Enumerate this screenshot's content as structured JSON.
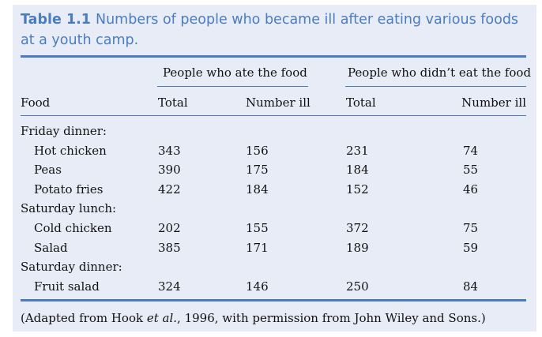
{
  "table": {
    "number": "Table 1.1",
    "title": "Numbers of people who became ill after eating various foods at a youth camp.",
    "group_headers": [
      "People who ate the food",
      "People who didn’t eat the food"
    ],
    "columns": [
      "Food",
      "Total",
      "Number ill",
      "Total",
      "Number ill"
    ],
    "rows": [
      {
        "type": "section",
        "label": "Friday dinner:"
      },
      {
        "type": "item",
        "label": "Hot chicken",
        "values": [
          "343",
          "156",
          "231",
          "74"
        ]
      },
      {
        "type": "item",
        "label": "Peas",
        "values": [
          "390",
          "175",
          "184",
          "55"
        ]
      },
      {
        "type": "item",
        "label": "Potato fries",
        "values": [
          "422",
          "184",
          "152",
          "46"
        ]
      },
      {
        "type": "section",
        "label": "Saturday lunch:"
      },
      {
        "type": "item",
        "label": "Cold chicken",
        "values": [
          "202",
          "155",
          "372",
          "75"
        ]
      },
      {
        "type": "item",
        "label": "Salad",
        "values": [
          "385",
          "171",
          "189",
          "59"
        ]
      },
      {
        "type": "section",
        "label": "Saturday dinner:"
      },
      {
        "type": "item",
        "label": "Fruit salad",
        "values": [
          "324",
          "146",
          "250",
          "84"
        ]
      }
    ],
    "source": {
      "before": "(Adapted from Hook ",
      "italic": "et al.",
      "after": ", 1996, with permission from John Wiley and Sons.)"
    }
  }
}
